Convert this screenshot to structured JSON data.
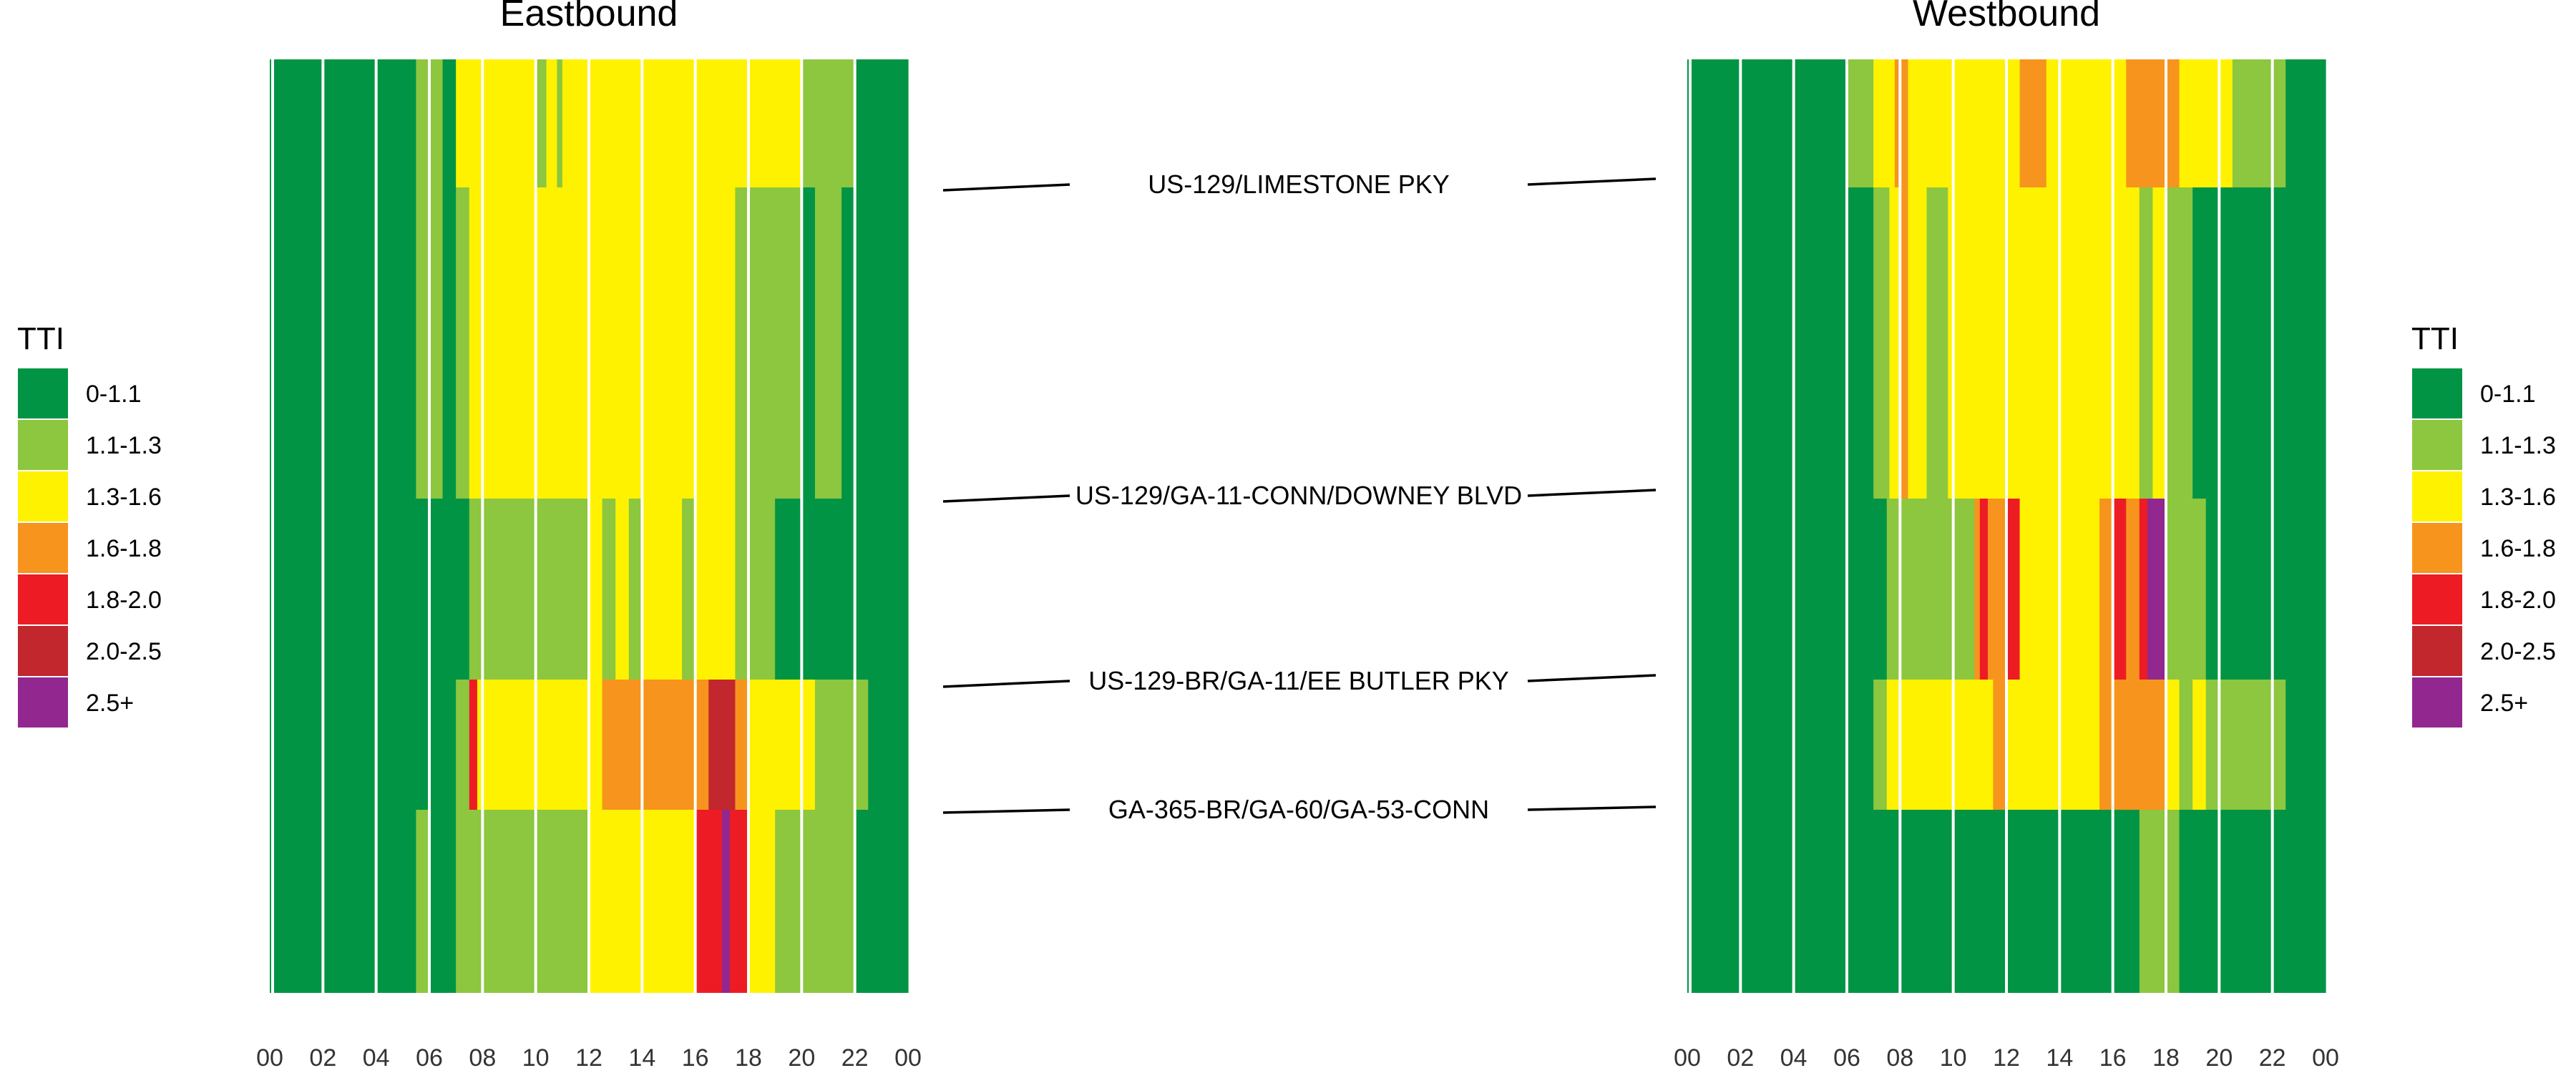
{
  "chart_data": {
    "type": "heatmap",
    "metric": "TTI",
    "x_ticks": [
      "00",
      "02",
      "04",
      "06",
      "08",
      "10",
      "12",
      "14",
      "16",
      "18",
      "20",
      "22",
      "00"
    ],
    "x_range_hours": [
      0,
      24
    ],
    "colors": {
      "0-1.1": "#009444",
      "1.1-1.3": "#8dc63f",
      "1.3-1.6": "#fff200",
      "1.6-1.8": "#f7941d",
      "1.8-2.0": "#ed1c24",
      "2.0-2.5": "#c1272d",
      "2.5+": "#92278f"
    },
    "legend": {
      "title": "TTI",
      "placement": "both sides",
      "items": [
        "0-1.1",
        "1.1-1.3",
        "1.3-1.6",
        "1.6-1.8",
        "1.8-2.0",
        "2.0-2.5",
        "2.5+"
      ]
    },
    "boundaries": [
      "US-129/LIMESTONE PKY",
      "US-129/GA-11-CONN/DOWNEY BLVD",
      "US-129-BR/GA-11/EE BUTLER PKY",
      "GA-365-BR/GA-60/GA-53-CONN"
    ],
    "panels": [
      {
        "title": "Eastbound",
        "segments": [
          {
            "from": "top",
            "to": "US-129/LIMESTONE PKY",
            "runs": [
              [
                0,
                5.5,
                "0-1.1"
              ],
              [
                5.5,
                6.5,
                "1.1-1.3"
              ],
              [
                6.5,
                7,
                "0-1.1"
              ],
              [
                7,
                10,
                "1.3-1.6"
              ],
              [
                10,
                10.4,
                "1.1-1.3"
              ],
              [
                10.4,
                10.8,
                "1.3-1.6"
              ],
              [
                10.8,
                11,
                "1.1-1.3"
              ],
              [
                11,
                20,
                "1.3-1.6"
              ],
              [
                20,
                22,
                "1.1-1.3"
              ],
              [
                22,
                24,
                "0-1.1"
              ]
            ]
          },
          {
            "from": "US-129/LIMESTONE PKY",
            "to": "US-129/GA-11-CONN/DOWNEY BLVD",
            "runs": [
              [
                0,
                5.5,
                "0-1.1"
              ],
              [
                5.5,
                6.5,
                "1.1-1.3"
              ],
              [
                6.5,
                7,
                "0-1.1"
              ],
              [
                7,
                7.5,
                "1.1-1.3"
              ],
              [
                7.5,
                17.5,
                "1.3-1.6"
              ],
              [
                17.5,
                20,
                "1.1-1.3"
              ],
              [
                20,
                20.5,
                "0-1.1"
              ],
              [
                20.5,
                21.5,
                "1.1-1.3"
              ],
              [
                21.5,
                24,
                "0-1.1"
              ]
            ]
          },
          {
            "from": "US-129/GA-11-CONN/DOWNEY BLVD",
            "to": "US-129-BR/GA-11/EE BUTLER PKY",
            "runs": [
              [
                0,
                7.5,
                "0-1.1"
              ],
              [
                7.5,
                12,
                "1.1-1.3"
              ],
              [
                12,
                12.5,
                "1.3-1.6"
              ],
              [
                12.5,
                13,
                "1.1-1.3"
              ],
              [
                13,
                13.5,
                "1.3-1.6"
              ],
              [
                13.5,
                14,
                "1.1-1.3"
              ],
              [
                14,
                15.5,
                "1.3-1.6"
              ],
              [
                15.5,
                16,
                "1.1-1.3"
              ],
              [
                16,
                17.5,
                "1.3-1.6"
              ],
              [
                17.5,
                19,
                "1.1-1.3"
              ],
              [
                19,
                24,
                "0-1.1"
              ]
            ]
          },
          {
            "from": "US-129-BR/GA-11/EE BUTLER PKY",
            "to": "GA-365-BR/GA-60/GA-53-CONN",
            "runs": [
              [
                0,
                7,
                "0-1.1"
              ],
              [
                7,
                7.5,
                "1.1-1.3"
              ],
              [
                7.5,
                7.8,
                "1.8-2.0"
              ],
              [
                7.8,
                12.5,
                "1.3-1.6"
              ],
              [
                12.5,
                16.5,
                "1.6-1.8"
              ],
              [
                16.5,
                17.5,
                "2.0-2.5"
              ],
              [
                17.5,
                18,
                "1.6-1.8"
              ],
              [
                18,
                20.5,
                "1.3-1.6"
              ],
              [
                20.5,
                22.5,
                "1.1-1.3"
              ],
              [
                22.5,
                24,
                "0-1.1"
              ]
            ]
          },
          {
            "from": "GA-365-BR/GA-60/GA-53-CONN",
            "to": "bottom",
            "runs": [
              [
                0,
                5.5,
                "0-1.1"
              ],
              [
                5.5,
                6,
                "1.1-1.3"
              ],
              [
                6,
                7,
                "0-1.1"
              ],
              [
                7,
                8,
                "1.1-1.3"
              ],
              [
                8,
                12,
                "1.1-1.3"
              ],
              [
                12,
                16,
                "1.3-1.6"
              ],
              [
                16,
                17,
                "1.8-2.0"
              ],
              [
                17,
                17.3,
                "2.5+"
              ],
              [
                17.3,
                18,
                "1.8-2.0"
              ],
              [
                18,
                19,
                "1.3-1.6"
              ],
              [
                19,
                20,
                "1.1-1.3"
              ],
              [
                20,
                22,
                "1.1-1.3"
              ],
              [
                22,
                24,
                "0-1.1"
              ]
            ]
          }
        ]
      },
      {
        "title": "Westbound",
        "segments": [
          {
            "from": "top",
            "to": "US-129/LIMESTONE PKY",
            "runs": [
              [
                0,
                6,
                "0-1.1"
              ],
              [
                6,
                7,
                "1.1-1.3"
              ],
              [
                7,
                7.8,
                "1.3-1.6"
              ],
              [
                7.8,
                8.3,
                "1.6-1.8"
              ],
              [
                8.3,
                12.5,
                "1.3-1.6"
              ],
              [
                12.5,
                13.5,
                "1.6-1.8"
              ],
              [
                13.5,
                16.5,
                "1.3-1.6"
              ],
              [
                16.5,
                18.5,
                "1.6-1.8"
              ],
              [
                18.5,
                20.5,
                "1.3-1.6"
              ],
              [
                20.5,
                22.5,
                "1.1-1.3"
              ],
              [
                22.5,
                24,
                "0-1.1"
              ]
            ]
          },
          {
            "from": "US-129/LIMESTONE PKY",
            "to": "US-129/GA-11-CONN/DOWNEY BLVD",
            "runs": [
              [
                0,
                7,
                "0-1.1"
              ],
              [
                7,
                7.6,
                "1.1-1.3"
              ],
              [
                7.6,
                8,
                "1.3-1.6"
              ],
              [
                8,
                8.3,
                "1.6-1.8"
              ],
              [
                8.3,
                9,
                "1.3-1.6"
              ],
              [
                9,
                9.8,
                "1.1-1.3"
              ],
              [
                9.8,
                17,
                "1.3-1.6"
              ],
              [
                17,
                17.5,
                "1.1-1.3"
              ],
              [
                17.5,
                18,
                "1.3-1.6"
              ],
              [
                18,
                19,
                "1.1-1.3"
              ],
              [
                19,
                24,
                "0-1.1"
              ]
            ]
          },
          {
            "from": "US-129/GA-11-CONN/DOWNEY BLVD",
            "to": "US-129-BR/GA-11/EE BUTLER PKY",
            "runs": [
              [
                0,
                7.5,
                "0-1.1"
              ],
              [
                7.5,
                10.8,
                "1.1-1.3"
              ],
              [
                10.8,
                11,
                "1.6-1.8"
              ],
              [
                11,
                11.3,
                "1.8-2.0"
              ],
              [
                11.3,
                12,
                "1.6-1.8"
              ],
              [
                12,
                12.5,
                "1.8-2.0"
              ],
              [
                12.5,
                15.5,
                "1.3-1.6"
              ],
              [
                15.5,
                16,
                "1.6-1.8"
              ],
              [
                16,
                16.5,
                "1.8-2.0"
              ],
              [
                16.5,
                17,
                "1.6-1.8"
              ],
              [
                17,
                17.3,
                "1.8-2.0"
              ],
              [
                17.3,
                18,
                "2.5+"
              ],
              [
                18,
                19.5,
                "1.1-1.3"
              ],
              [
                19.5,
                24,
                "0-1.1"
              ]
            ]
          },
          {
            "from": "US-129-BR/GA-11/EE BUTLER PKY",
            "to": "GA-365-BR/GA-60/GA-53-CONN",
            "runs": [
              [
                0,
                7,
                "0-1.1"
              ],
              [
                7,
                7.5,
                "1.1-1.3"
              ],
              [
                7.5,
                11.5,
                "1.3-1.6"
              ],
              [
                11.5,
                12,
                "1.6-1.8"
              ],
              [
                12,
                15.5,
                "1.3-1.6"
              ],
              [
                15.5,
                18,
                "1.6-1.8"
              ],
              [
                18,
                18.5,
                "1.3-1.6"
              ],
              [
                18.5,
                19,
                "1.1-1.3"
              ],
              [
                19,
                19.5,
                "1.3-1.6"
              ],
              [
                19.5,
                22.5,
                "1.1-1.3"
              ],
              [
                22.5,
                24,
                "0-1.1"
              ]
            ]
          },
          {
            "from": "GA-365-BR/GA-60/GA-53-CONN",
            "to": "bottom",
            "runs": [
              [
                0,
                17,
                "0-1.1"
              ],
              [
                17,
                18.5,
                "1.1-1.3"
              ],
              [
                18.5,
                24,
                "0-1.1"
              ]
            ]
          }
        ]
      }
    ]
  }
}
